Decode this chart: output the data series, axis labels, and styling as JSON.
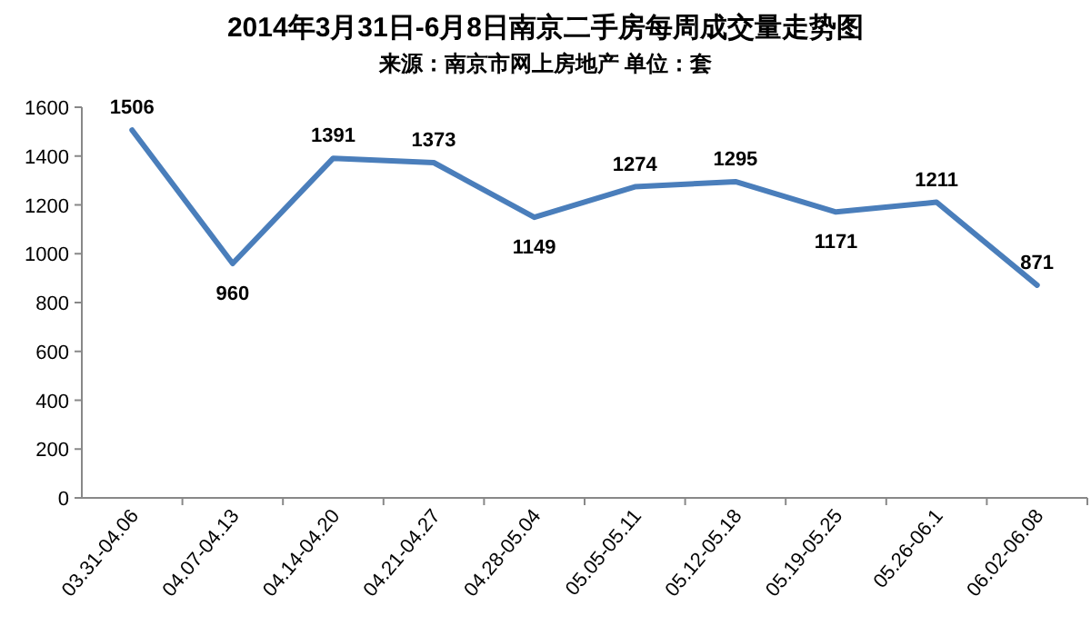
{
  "chart_data": {
    "type": "line",
    "title": "2014年3月31日-6月8日南京二手房每周成交量走势图",
    "subtitle": "来源：南京市网上房地产 单位：套",
    "categories": [
      "03.31-04.06",
      "04.07-04.13",
      "04.14-04.20",
      "04.21-04.27",
      "04.28-05.04",
      "05.05-05.11",
      "05.12-05.18",
      "05.19-05.25",
      "05.26-06.1",
      "06.02-06.08"
    ],
    "values": [
      1506,
      960,
      1391,
      1373,
      1149,
      1274,
      1295,
      1171,
      1211,
      871
    ],
    "color": "#4a7ebb",
    "ylim": [
      0,
      1600
    ],
    "yticks": [
      0,
      200,
      400,
      600,
      800,
      1000,
      1200,
      1400,
      1600
    ],
    "data_labels": true,
    "grid": false,
    "marker": "none"
  }
}
